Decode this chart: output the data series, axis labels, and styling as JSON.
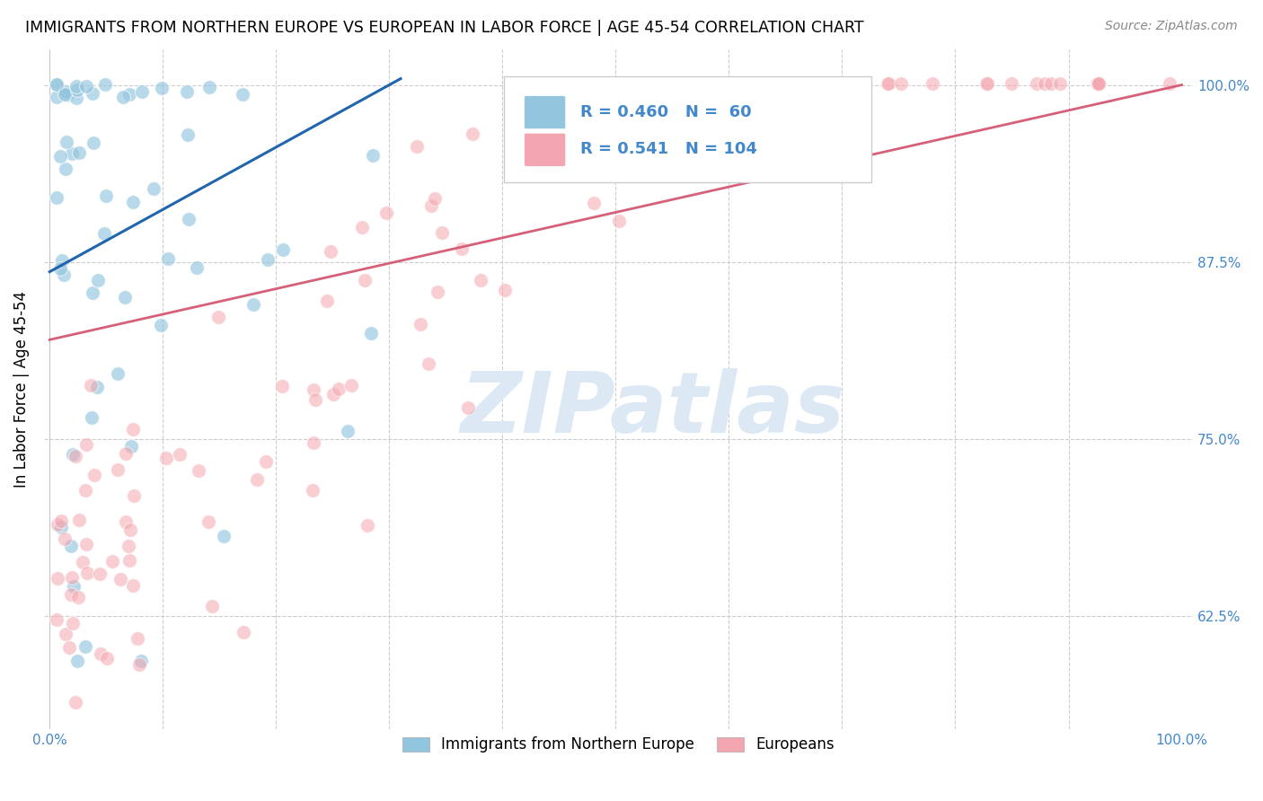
{
  "title": "IMMIGRANTS FROM NORTHERN EUROPE VS EUROPEAN IN LABOR FORCE | AGE 45-54 CORRELATION CHART",
  "source": "Source: ZipAtlas.com",
  "ylabel": "In Labor Force | Age 45-54",
  "blue_R": 0.46,
  "blue_N": 60,
  "pink_R": 0.541,
  "pink_N": 104,
  "blue_color": "#92c5de",
  "pink_color": "#f4a6b0",
  "blue_line_color": "#2166ac",
  "pink_line_color": "#d6607a",
  "legend_blue_label": "Immigrants from Northern Europe",
  "legend_pink_label": "Europeans",
  "watermark_color": "#dce9f5",
  "tick_color": "#4488cc",
  "yticks": [
    0.625,
    0.75,
    0.875,
    1.0
  ],
  "ytick_labels": [
    "62.5%",
    "75.0%",
    "87.5%",
    "100.0%"
  ],
  "xlim": [
    -0.005,
    1.01
  ],
  "ylim": [
    0.545,
    1.025
  ]
}
